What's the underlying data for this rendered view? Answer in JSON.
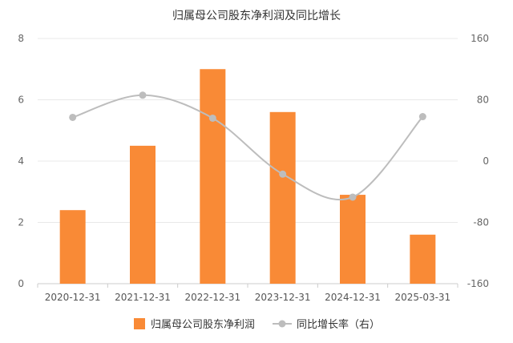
{
  "chart_data": {
    "type": "bar+line",
    "title": "归属母公司股东净利润及同比增长",
    "categories": [
      "2020-12-31",
      "2021-12-31",
      "2022-12-31",
      "2023-12-31",
      "2024-12-31",
      "2025-03-31"
    ],
    "series": [
      {
        "name": "归属母公司股东净利润",
        "type": "bar",
        "axis": "left",
        "color": "#F98A36",
        "values": [
          2.4,
          4.5,
          7.0,
          5.6,
          2.9,
          1.6
        ]
      },
      {
        "name": "同比增长率（右）",
        "type": "line",
        "axis": "right",
        "color": "#BDBDBD",
        "values": [
          57,
          86,
          56,
          -17,
          -47,
          58
        ]
      }
    ],
    "y_left": {
      "min": 0,
      "max": 8,
      "ticks": [
        "0",
        "2",
        "4",
        "6",
        "8"
      ]
    },
    "y_right": {
      "min": -160,
      "max": 160,
      "ticks": [
        "-160",
        "-80",
        "0",
        "80",
        "160"
      ]
    },
    "grid": true,
    "legend_position": "bottom-center"
  }
}
